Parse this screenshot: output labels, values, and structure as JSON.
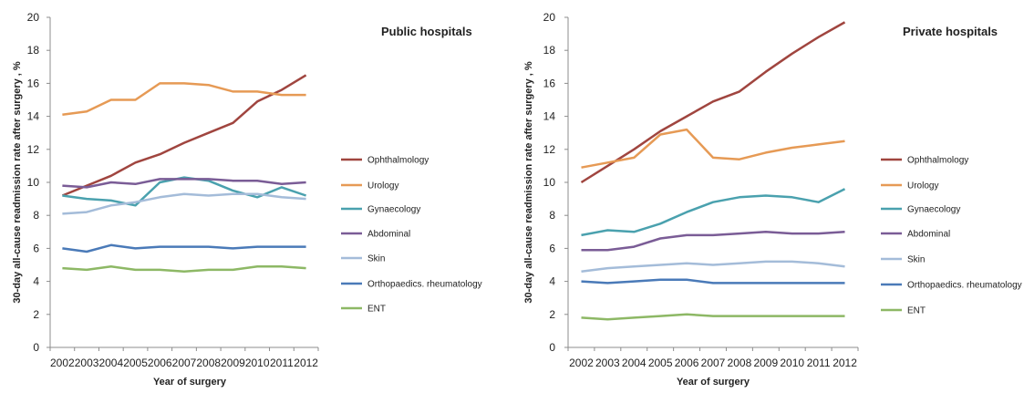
{
  "chart_data": [
    {
      "type": "line",
      "title": "Public hospitals",
      "xlabel": "Year of surgery",
      "ylabel": "30-day all-cause readmission rate after surgery , %",
      "ylim": [
        0,
        20
      ],
      "y_ticks": [
        "0",
        "2",
        "4",
        "6",
        "8",
        "10",
        "12",
        "14",
        "16",
        "18",
        "20"
      ],
      "categories": [
        "2002",
        "2003",
        "2004",
        "2005",
        "2006",
        "2007",
        "2008",
        "2009",
        "2010",
        "2011",
        "2012"
      ],
      "grid": false,
      "legend_position": "right",
      "series": [
        {
          "name": "Ophthalmology",
          "color": "#a0453f",
          "values": [
            9.2,
            9.8,
            10.4,
            11.2,
            11.7,
            12.4,
            13.0,
            13.6,
            14.9,
            15.6,
            16.5
          ]
        },
        {
          "name": "Urology",
          "color": "#e69a55",
          "values": [
            14.1,
            14.3,
            15.0,
            15.0,
            16.0,
            16.0,
            15.9,
            15.5,
            15.5,
            15.3,
            15.3
          ]
        },
        {
          "name": "Gynaecology",
          "color": "#4aa1ae",
          "values": [
            9.2,
            9.0,
            8.9,
            8.6,
            10.0,
            10.3,
            10.1,
            9.5,
            9.1,
            9.7,
            9.2
          ]
        },
        {
          "name": "Abdominal",
          "color": "#7a5c96",
          "values": [
            9.8,
            9.7,
            10.0,
            9.9,
            10.2,
            10.2,
            10.2,
            10.1,
            10.1,
            9.9,
            10.0
          ]
        },
        {
          "name": "Skin",
          "color": "#a4bcd9",
          "values": [
            8.1,
            8.2,
            8.6,
            8.8,
            9.1,
            9.3,
            9.2,
            9.3,
            9.3,
            9.1,
            9.0
          ]
        },
        {
          "name": "Orthopaedics. rheumatology",
          "color": "#4a7ab8",
          "values": [
            6.0,
            5.8,
            6.2,
            6.0,
            6.1,
            6.1,
            6.1,
            6.0,
            6.1,
            6.1,
            6.1
          ]
        },
        {
          "name": "ENT",
          "color": "#8db865",
          "values": [
            4.8,
            4.7,
            4.9,
            4.7,
            4.7,
            4.6,
            4.7,
            4.7,
            4.9,
            4.9,
            4.8
          ]
        }
      ]
    },
    {
      "type": "line",
      "title": "Private hospitals",
      "xlabel": "Year of surgery",
      "ylabel": "30-day all-cause readmission rate after surgery , %",
      "ylim": [
        0,
        20
      ],
      "y_ticks": [
        "0",
        "2",
        "4",
        "6",
        "8",
        "10",
        "12",
        "14",
        "16",
        "18",
        "20"
      ],
      "categories": [
        "2002",
        "2003",
        "2004",
        "2005",
        "2006",
        "2007",
        "2008",
        "2009",
        "2010",
        "2011",
        "2012"
      ],
      "grid": false,
      "legend_position": "right",
      "series": [
        {
          "name": "Ophthalmology",
          "color": "#a0453f",
          "values": [
            10.0,
            11.0,
            12.0,
            13.1,
            14.0,
            14.9,
            15.5,
            16.7,
            17.8,
            18.8,
            19.7
          ]
        },
        {
          "name": "Urology",
          "color": "#e69a55",
          "values": [
            10.9,
            11.2,
            11.5,
            12.9,
            13.2,
            11.5,
            11.4,
            11.8,
            12.1,
            12.3,
            12.5
          ]
        },
        {
          "name": "Gynaecology",
          "color": "#4aa1ae",
          "values": [
            6.8,
            7.1,
            7.0,
            7.5,
            8.2,
            8.8,
            9.1,
            9.2,
            9.1,
            8.8,
            9.6
          ]
        },
        {
          "name": "Abdominal",
          "color": "#7a5c96",
          "values": [
            5.9,
            5.9,
            6.1,
            6.6,
            6.8,
            6.8,
            6.9,
            7.0,
            6.9,
            6.9,
            7.0
          ]
        },
        {
          "name": "Skin",
          "color": "#a4bcd9",
          "values": [
            4.6,
            4.8,
            4.9,
            5.0,
            5.1,
            5.0,
            5.1,
            5.2,
            5.2,
            5.1,
            4.9
          ]
        },
        {
          "name": "Orthopaedics. rheumatology",
          "color": "#4a7ab8",
          "values": [
            4.0,
            3.9,
            4.0,
            4.1,
            4.1,
            3.9,
            3.9,
            3.9,
            3.9,
            3.9,
            3.9
          ]
        },
        {
          "name": "ENT",
          "color": "#8db865",
          "values": [
            1.8,
            1.7,
            1.8,
            1.9,
            2.0,
            1.9,
            1.9,
            1.9,
            1.9,
            1.9,
            1.9
          ]
        }
      ]
    }
  ]
}
